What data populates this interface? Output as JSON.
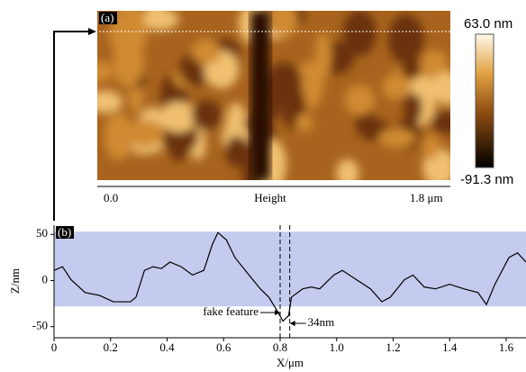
{
  "image_panel": {
    "label": "(a)",
    "colorbar_max": "63.0 nm",
    "colorbar_min": "-91.3 nm",
    "scale_start": "0.0",
    "scale_title": "Height",
    "scale_end": "1.8 μm"
  },
  "chart_data": {
    "type": "line",
    "label": "(b)",
    "xlabel": "X/μm",
    "ylabel": "Z/nm",
    "color": "#000000",
    "x": [
      0,
      0.03,
      0.06,
      0.11,
      0.16,
      0.21,
      0.27,
      0.29,
      0.32,
      0.35,
      0.38,
      0.41,
      0.45,
      0.49,
      0.53,
      0.56,
      0.58,
      0.61,
      0.64,
      0.69,
      0.73,
      0.76,
      0.79,
      0.81,
      0.83,
      0.84,
      0.88,
      0.91,
      0.94,
      0.99,
      1.02,
      1.07,
      1.12,
      1.16,
      1.19,
      1.24,
      1.27,
      1.31,
      1.35,
      1.4,
      1.45,
      1.5,
      1.53,
      1.56,
      1.61,
      1.64,
      1.67
    ],
    "values": [
      11,
      15,
      1,
      -13,
      -16,
      -23,
      -23,
      -18,
      11,
      15,
      13,
      20,
      15,
      6,
      11,
      39,
      52,
      44,
      25,
      6,
      -9,
      -18,
      -33,
      -44,
      -38,
      -18,
      -9,
      -7,
      -9,
      6,
      11,
      1,
      -9,
      -23,
      -18,
      1,
      6,
      -7,
      -9,
      -4,
      -9,
      -13,
      -26,
      -4,
      25,
      30,
      20
    ],
    "xlim": [
      0,
      1.67
    ],
    "ylim": [
      -62,
      60
    ],
    "xticks": [
      0,
      0.2,
      0.4,
      0.6,
      0.8,
      {
        "value": 1,
        "label": "1.0"
      },
      1.2,
      1.4,
      1.6
    ],
    "yticks": [
      50,
      0,
      -50
    ],
    "band": [
      -28,
      53
    ],
    "band_color": "#c5cbee",
    "markers_x": [
      0.8,
      0.834
    ],
    "annotations": [
      "fake feature",
      "34nm"
    ]
  }
}
